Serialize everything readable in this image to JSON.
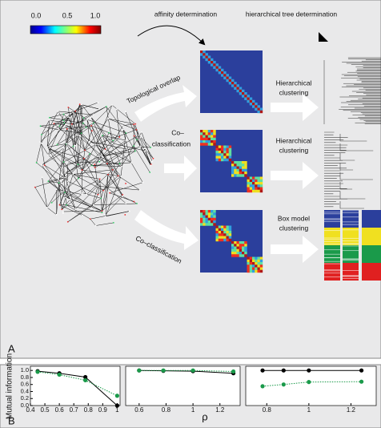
{
  "panel_a": {
    "label": "A",
    "colorbar_labels": [
      "0.0",
      "0.5",
      "1.0"
    ],
    "step_titles": [
      "affinity determination",
      "hierarchical tree determination"
    ],
    "method_labels": [
      "Topological overlap",
      "Co–",
      "classification",
      "Co–classification"
    ],
    "clustering_labels": [
      [
        "Hierarchical",
        "clustering"
      ],
      [
        "Hierarchical",
        "clustering"
      ],
      [
        "Box model",
        "clustering"
      ]
    ]
  },
  "panel_b": {
    "label": "B",
    "ylabel": "Mutual information",
    "xlabel": "ρ"
  },
  "chart_data": [
    {
      "type": "line",
      "x": [
        0.45,
        0.6,
        0.78,
        1.0
      ],
      "xlim": [
        0.4,
        1.02
      ],
      "ylim": [
        0,
        1.05
      ],
      "xticks": [
        0.4,
        0.5,
        0.6,
        0.7,
        0.8,
        0.9,
        1
      ],
      "yticks": [
        {
          "value": 0,
          "label": "0.0"
        },
        0.2,
        0.4,
        0.6,
        0.8,
        {
          "value": 1,
          "label": "1.0"
        }
      ],
      "series": [
        {
          "color": "#000000",
          "values": [
            0.98,
            0.92,
            0.81,
            0.0
          ]
        },
        {
          "color": "#1a9a4a",
          "values": [
            0.96,
            0.88,
            0.72,
            0.28
          ]
        }
      ]
    },
    {
      "type": "line",
      "x": [
        0.6,
        0.78,
        1.0,
        1.3
      ],
      "xlim": [
        0.5,
        1.35
      ],
      "ylim": [
        0,
        1.05
      ],
      "xticks": [
        0.6,
        0.8,
        1,
        1.2
      ],
      "series": [
        {
          "color": "#000000",
          "values": [
            1.0,
            0.99,
            0.98,
            0.92
          ]
        },
        {
          "color": "#1a9a4a",
          "values": [
            1.0,
            1.0,
            1.0,
            0.97
          ]
        }
      ]
    },
    {
      "type": "line",
      "x": [
        0.78,
        0.88,
        1.0,
        1.25
      ],
      "xlim": [
        0.7,
        1.32
      ],
      "ylim": [
        0,
        1.05
      ],
      "xticks": [
        0.8,
        1,
        1.2
      ],
      "series": [
        {
          "color": "#000000",
          "values": [
            1.0,
            1.0,
            1.0,
            1.0
          ]
        },
        {
          "color": "#1a9a4a",
          "values": [
            0.55,
            0.6,
            0.67,
            0.68
          ]
        }
      ]
    }
  ]
}
